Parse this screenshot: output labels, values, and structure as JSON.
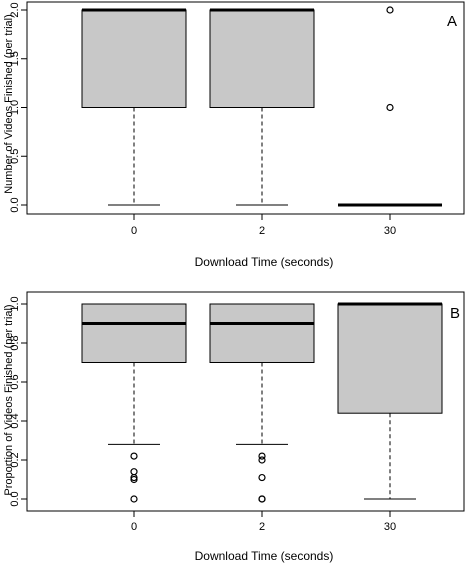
{
  "chart_data": [
    {
      "type": "boxplot",
      "panel_label": "A",
      "xlabel": "Download Time (seconds)",
      "ylabel": "Number of Videos Finished (per trial)",
      "categories": [
        "0",
        "2",
        "30"
      ],
      "ylim": [
        0,
        2
      ],
      "yticks": [
        0.0,
        0.5,
        1.0,
        1.5,
        2.0
      ],
      "ytick_labels": [
        "0.0",
        "0.5",
        "1.0",
        "1.5",
        "2.0"
      ],
      "boxes": [
        {
          "category": "0",
          "whisker_low": 0,
          "q1": 1,
          "median": 2,
          "q3": 2,
          "whisker_high": 2,
          "outliers": []
        },
        {
          "category": "2",
          "whisker_low": 0,
          "q1": 1,
          "median": 2,
          "q3": 2,
          "whisker_high": 2,
          "outliers": []
        },
        {
          "category": "30",
          "whisker_low": 0,
          "q1": 0,
          "median": 0,
          "q3": 0,
          "whisker_high": 0,
          "outliers": [
            1,
            2
          ]
        }
      ],
      "box_color": "#c8c8c8"
    },
    {
      "type": "boxplot",
      "panel_label": "B",
      "xlabel": "Download Time (seconds)",
      "ylabel": "Proportion of Videos Finished (per trial)",
      "categories": [
        "0",
        "2",
        "30"
      ],
      "ylim": [
        0,
        1
      ],
      "yticks": [
        0.0,
        0.2,
        0.4,
        0.6,
        0.8,
        1.0
      ],
      "ytick_labels": [
        "0.0",
        "0.2",
        "0.4",
        "0.6",
        "0.8",
        "1.0"
      ],
      "boxes": [
        {
          "category": "0",
          "whisker_low": 0.28,
          "q1": 0.7,
          "median": 0.9,
          "q3": 1.0,
          "whisker_high": 1.0,
          "outliers": [
            0.22,
            0.14,
            0.11,
            0.1,
            0.0
          ]
        },
        {
          "category": "2",
          "whisker_low": 0.28,
          "q1": 0.7,
          "median": 0.9,
          "q3": 1.0,
          "whisker_high": 1.0,
          "outliers": [
            0.22,
            0.2,
            0.11,
            0.0,
            0.0
          ]
        },
        {
          "category": "30",
          "whisker_low": 0.0,
          "q1": 0.44,
          "median": 1.0,
          "q3": 1.0,
          "whisker_high": 1.0,
          "outliers": []
        }
      ],
      "box_color": "#c8c8c8"
    }
  ]
}
